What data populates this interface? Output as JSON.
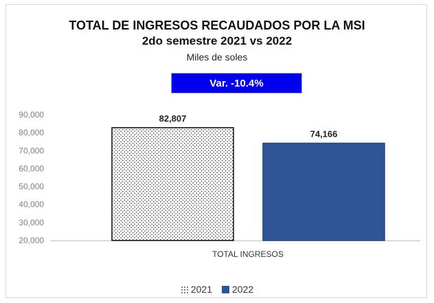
{
  "chart_data": {
    "type": "bar",
    "title": "TOTAL DE INGRESOS RECAUDADOS POR LA MSI",
    "subtitle": "2do semestre 2021 vs 2022",
    "unit_label": "Miles de soles",
    "badge": "Var. -10.4%",
    "categories": [
      "TOTAL INGRESOS"
    ],
    "series": [
      {
        "name": "2021",
        "values": [
          82807
        ],
        "label": "82,807",
        "color": "#ffffff",
        "pattern": "dots"
      },
      {
        "name": "2022",
        "values": [
          74166
        ],
        "label": "74,166",
        "color": "#2f5597"
      }
    ],
    "ylim": [
      20000,
      90000
    ],
    "yticks": [
      20000,
      30000,
      40000,
      50000,
      60000,
      70000,
      80000,
      90000
    ],
    "ytick_labels": [
      "20,000",
      "30,000",
      "40,000",
      "50,000",
      "60,000",
      "70,000",
      "80,000",
      "90,000"
    ],
    "grid": false,
    "legend_position": "bottom"
  },
  "legend": {
    "item1": "2021",
    "item2": "2022"
  }
}
